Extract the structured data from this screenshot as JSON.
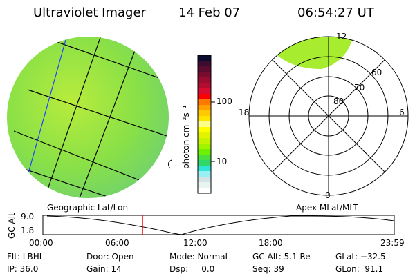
{
  "header": {
    "title": "Ultraviolet Imager",
    "date": "14 Feb 07",
    "time": "06:54:27 UT"
  },
  "colorbar": {
    "label": "photon cm⁻²s⁻¹",
    "ticks": [
      "100",
      "10"
    ],
    "colors": [
      "#0c0c30",
      "#3c0c30",
      "#5a0c30",
      "#780c30",
      "#980c30",
      "#b40c30",
      "#d80c30",
      "#ff0000",
      "#ff7800",
      "#ffa000",
      "#ffc800",
      "#ffe400",
      "#ffff88",
      "#ffff00",
      "#e4f400",
      "#c4f400",
      "#a0f400",
      "#6ef000",
      "#48e040",
      "#30d868",
      "#30e4d8",
      "#98f0f4",
      "#d4e4e4",
      "#e8f4ee",
      "#ffffff"
    ]
  },
  "polar": {
    "labels": {
      "top": "12",
      "bottom": "0",
      "left": "18",
      "right": "6"
    },
    "rings": [
      "60",
      "70",
      "80"
    ]
  },
  "plot": {
    "left_label": "Geographic Lat/Lon",
    "right_label": "Apex MLat/MLT",
    "ylabel": "GC Alt",
    "yticks": [
      "9.0",
      "1.8"
    ],
    "xticks": [
      "00:00",
      "06:00",
      "12:00",
      "18:00",
      "23:59"
    ],
    "current_fraction": 0.288
  },
  "status": [
    [
      "Flt: LBHL",
      "Door: Open",
      "Mode: Normal",
      "GC Alt: 5.1 Re",
      "GLat: −32.5"
    ],
    [
      "IP: 36.0",
      "Gain: 14",
      "Dsp:     0.0",
      "Seq: 39",
      "GLon:  91.1"
    ]
  ]
}
